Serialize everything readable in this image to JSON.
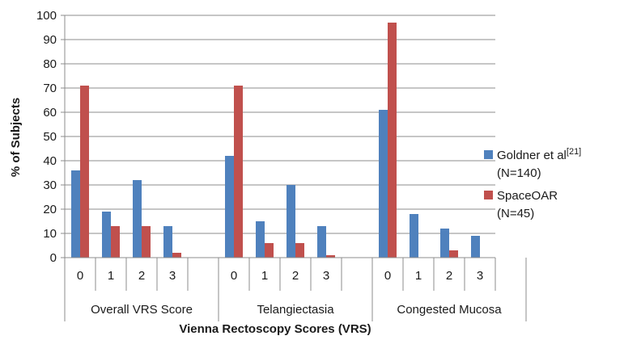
{
  "chart_data": {
    "type": "bar",
    "ylabel": "% of Subjects",
    "xlabel": "Vienna Rectoscopy Scores (VRS)",
    "ylim": [
      0,
      100
    ],
    "yticks": [
      0,
      10,
      20,
      30,
      40,
      50,
      60,
      70,
      80,
      90,
      100
    ],
    "grid": true,
    "legend_position": "right",
    "groups": [
      {
        "label": "Overall VRS Score",
        "categories": [
          "0",
          "1",
          "2",
          "3"
        ]
      },
      {
        "label": "Telangiectasia",
        "categories": [
          "0",
          "1",
          "2",
          "3"
        ]
      },
      {
        "label": "Congested Mucosa",
        "categories": [
          "0",
          "1",
          "2",
          "3"
        ]
      }
    ],
    "series": [
      {
        "name": "Goldner et al[21] (N=140)",
        "legend_line1": "Goldner et al",
        "legend_sup": "[21]",
        "legend_line2": "(N=140)",
        "color": "#4F81BD",
        "values": [
          [
            36,
            19,
            32,
            13
          ],
          [
            42,
            15,
            30,
            13
          ],
          [
            61,
            18,
            12,
            9
          ]
        ]
      },
      {
        "name": "SpaceOAR (N=45)",
        "legend_line1": "SpaceOAR",
        "legend_sup": "",
        "legend_line2": "(N=45)",
        "color": "#C0504D",
        "values": [
          [
            71,
            13,
            13,
            2
          ],
          [
            71,
            6,
            6,
            1
          ],
          [
            97,
            0,
            3,
            0
          ]
        ]
      }
    ]
  }
}
